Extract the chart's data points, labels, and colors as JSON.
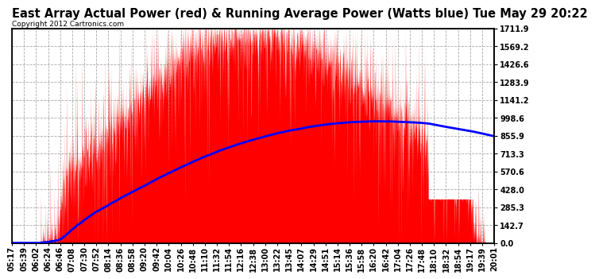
{
  "title": "East Array Actual Power (red) & Running Average Power (Watts blue) Tue May 29 20:22",
  "copyright": "Copyright 2012 Cartronics.com",
  "ymax": 1711.9,
  "ymin": 0.0,
  "yticks": [
    0.0,
    142.7,
    285.3,
    428.0,
    570.6,
    713.3,
    855.9,
    998.6,
    1141.2,
    1283.9,
    1426.6,
    1569.2,
    1711.9
  ],
  "xtick_labels": [
    "05:17",
    "05:39",
    "06:02",
    "06:24",
    "06:46",
    "07:08",
    "07:30",
    "07:52",
    "08:14",
    "08:36",
    "08:58",
    "09:20",
    "09:42",
    "10:04",
    "10:26",
    "10:48",
    "11:10",
    "11:32",
    "11:54",
    "12:16",
    "12:38",
    "13:00",
    "13:22",
    "13:45",
    "14:07",
    "14:29",
    "14:51",
    "15:14",
    "15:36",
    "15:58",
    "16:20",
    "16:42",
    "17:04",
    "17:26",
    "17:48",
    "18:10",
    "18:32",
    "18:54",
    "19:17",
    "19:39",
    "20:01"
  ],
  "actual_color": "#FF0000",
  "avg_color": "#0000FF",
  "bg_color": "#FFFFFF",
  "grid_color": "#AAAAAA",
  "title_fontsize": 10.5,
  "axis_fontsize": 7,
  "copyright_fontsize": 6.5
}
